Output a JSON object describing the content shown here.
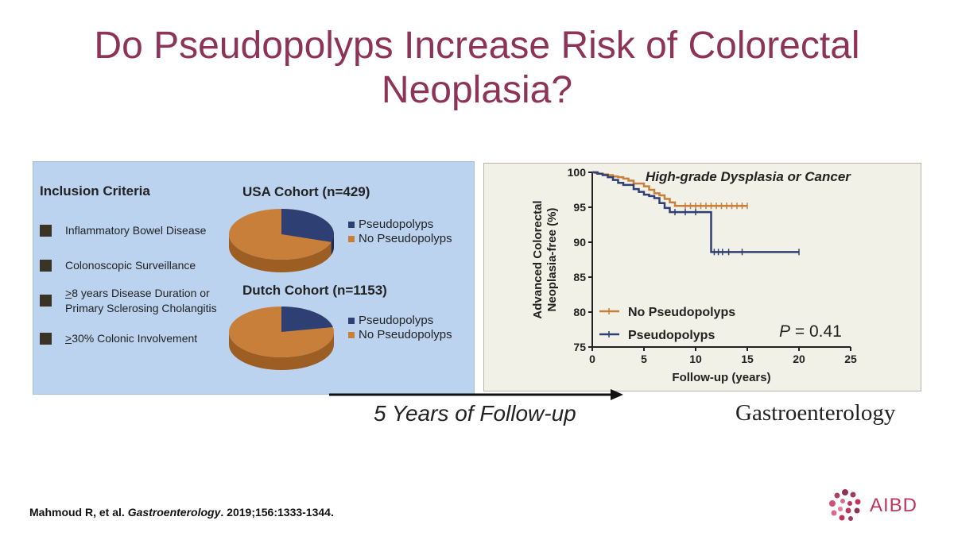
{
  "title": "Do Pseudopolyps Increase Risk of Colorectal Neoplasia?",
  "inclusion": {
    "heading": "Inclusion Criteria",
    "items": [
      {
        "prefix": "",
        "text": "Inflammatory Bowel Disease"
      },
      {
        "prefix": "",
        "text": "Colonoscopic Surveillance"
      },
      {
        "prefix": ">",
        "text": "8 years Disease Duration or",
        "text2": "Primary Sclerosing Cholangitis"
      },
      {
        "prefix": ">",
        "text": "30% Colonic Involvement"
      }
    ]
  },
  "colors": {
    "pseudopolyps": "#2e3f73",
    "no_pseudopolyps": "#c87f3a",
    "title": "#8e3358",
    "brand": "#c0345c"
  },
  "chart_data": [
    {
      "type": "pie",
      "title": "USA Cohort (n=429)",
      "labels": [
        "Pseudopolyps",
        "No Pseudopolyps"
      ],
      "values": [
        30,
        70
      ]
    },
    {
      "type": "pie",
      "title": "Dutch Cohort (n=1153)",
      "labels": [
        "Pseudopolyps",
        "No Pseudopolyps"
      ],
      "values": [
        22,
        78
      ]
    },
    {
      "type": "line",
      "subtype": "kaplan-meier",
      "title": "High-grade Dysplasia or Cancer",
      "xlabel": "Follow-up (years)",
      "ylabel_line1": "Advanced Colorectal",
      "ylabel_line2": "Neoplasia-free (%)",
      "xlim": [
        0,
        25
      ],
      "ylim": [
        75,
        100
      ],
      "xticks": [
        0,
        5,
        10,
        15,
        20,
        25
      ],
      "yticks": [
        75,
        80,
        85,
        90,
        95,
        100
      ],
      "annotation_p": "P",
      "annotation_val": " = 0.41",
      "series": [
        {
          "name": "No Pseudopolyps",
          "x": [
            0,
            0.3,
            0.6,
            1.0,
            1.5,
            2.0,
            2.5,
            3.0,
            3.5,
            4.0,
            5.0,
            5.5,
            6.0,
            6.5,
            7.0,
            7.5,
            8.0,
            15.0
          ],
          "y": [
            100,
            99.9,
            99.8,
            99.7,
            99.6,
            99.4,
            99.3,
            99.1,
            98.8,
            98.4,
            98.0,
            97.5,
            97.0,
            96.7,
            96.2,
            95.7,
            95.2,
            95.2
          ],
          "censor_x": [
            9,
            9.5,
            10,
            10.5,
            11,
            11.5,
            12,
            12.5,
            13,
            13.5,
            14,
            14.5,
            15
          ]
        },
        {
          "name": "Pseudopolyps",
          "x": [
            0,
            0.5,
            1.0,
            1.5,
            2.0,
            2.5,
            3.0,
            4.0,
            4.5,
            5.0,
            5.5,
            6.0,
            6.5,
            7.0,
            7.5,
            11.5,
            20.0
          ],
          "y": [
            100,
            99.8,
            99.6,
            99.3,
            98.9,
            98.5,
            98.2,
            97.6,
            97.2,
            96.8,
            96.6,
            96.3,
            95.6,
            94.9,
            94.3,
            88.6,
            88.6
          ],
          "censor_x": [
            8,
            9,
            10,
            11.8,
            12.2,
            12.6,
            13.2,
            14.5,
            20
          ]
        }
      ]
    }
  ],
  "footer": {
    "follow_up": "5 Years of Follow-up",
    "journal": "Gastroenterology",
    "citation_authors": "Mahmoud R, et al. ",
    "citation_journal": "Gastroenterology",
    "citation_rest": ". 2019;156:1333-1344.",
    "logo_text": "AIBD"
  }
}
